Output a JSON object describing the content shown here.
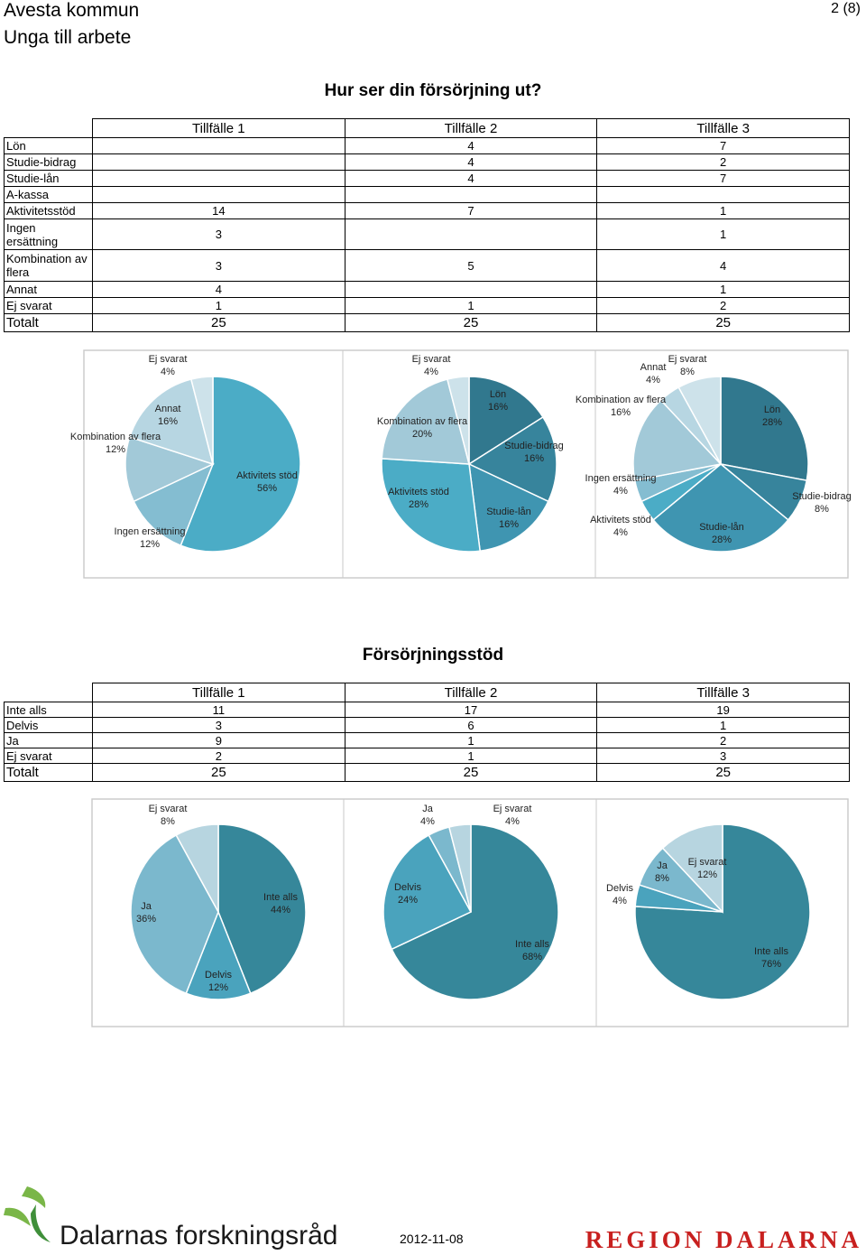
{
  "header": {
    "org": "Avesta kommun",
    "project": "Unga till arbete",
    "page": "2 (8)"
  },
  "section1": {
    "title": "Hur ser din försörjning ut?",
    "table": {
      "columns": [
        "Tillfälle 1",
        "Tillfälle 2",
        "Tillfälle 3"
      ],
      "rows": [
        {
          "label": "Lön",
          "values": [
            "",
            "4",
            "7"
          ]
        },
        {
          "label": "Studie-bidrag",
          "values": [
            "",
            "4",
            "2"
          ]
        },
        {
          "label": "Studie-lån",
          "values": [
            "",
            "4",
            "7"
          ]
        },
        {
          "label": "A-kassa",
          "values": [
            "",
            "",
            ""
          ]
        },
        {
          "label": "Aktivitetsstöd",
          "values": [
            "14",
            "7",
            "1"
          ]
        },
        {
          "label": "Ingen ersättning",
          "values": [
            "3",
            "",
            "1"
          ]
        },
        {
          "label": "Kombination av flera",
          "values": [
            "3",
            "5",
            "4"
          ]
        },
        {
          "label": "Annat",
          "values": [
            "4",
            "",
            "1"
          ]
        },
        {
          "label": "Ej svarat",
          "values": [
            "1",
            "1",
            "2"
          ]
        }
      ],
      "total": {
        "label": "Totalt",
        "values": [
          "25",
          "25",
          "25"
        ]
      }
    }
  },
  "section2": {
    "title": "Försörjningsstöd",
    "table": {
      "columns": [
        "Tillfälle 1",
        "Tillfälle 2",
        "Tillfälle 3"
      ],
      "rows": [
        {
          "label": "Inte alls",
          "values": [
            "11",
            "17",
            "19"
          ]
        },
        {
          "label": "Delvis",
          "values": [
            "3",
            "6",
            "1"
          ]
        },
        {
          "label": "Ja",
          "values": [
            "9",
            "1",
            "2"
          ]
        },
        {
          "label": "Ej svarat",
          "values": [
            "2",
            "1",
            "3"
          ]
        }
      ],
      "total": {
        "label": "Totalt",
        "values": [
          "25",
          "25",
          "25"
        ]
      }
    }
  },
  "chart_data": [
    {
      "type": "pie",
      "group": "Hur ser din försörjning ut?",
      "occasion": "Tillfälle 1",
      "slices": [
        {
          "label": "Aktivitets stöd",
          "value": 56,
          "color": "#4bacc6"
        },
        {
          "label": "Ingen ersättning",
          "value": 12,
          "color": "#84bdd1"
        },
        {
          "label": "Kombination av flera",
          "value": 12,
          "color": "#a2c9d8"
        },
        {
          "label": "Annat",
          "value": 16,
          "color": "#b7d6e2"
        },
        {
          "label": "Ej svarat",
          "value": 4,
          "color": "#cde2ea"
        }
      ]
    },
    {
      "type": "pie",
      "group": "Hur ser din försörjning ut?",
      "occasion": "Tillfälle 2",
      "slices": [
        {
          "label": "Lön",
          "value": 16,
          "color": "#31788e"
        },
        {
          "label": "Studie-bidrag",
          "value": 16,
          "color": "#37849c"
        },
        {
          "label": "Studie-lån",
          "value": 16,
          "color": "#3f95b1"
        },
        {
          "label": "Aktivitets stöd",
          "value": 28,
          "color": "#4bacc6"
        },
        {
          "label": "Kombination av flera",
          "value": 20,
          "color": "#a2c9d8"
        },
        {
          "label": "Ej svarat",
          "value": 4,
          "color": "#cde2ea"
        }
      ]
    },
    {
      "type": "pie",
      "group": "Hur ser din försörjning ut?",
      "occasion": "Tillfälle 3",
      "slices": [
        {
          "label": "Lön",
          "value": 28,
          "color": "#31788e"
        },
        {
          "label": "Studie-bidrag",
          "value": 8,
          "color": "#37849c"
        },
        {
          "label": "Studie-lån",
          "value": 28,
          "color": "#3f95b1"
        },
        {
          "label": "Aktivitets stöd",
          "value": 4,
          "color": "#4bacc6"
        },
        {
          "label": "Ingen ersättning",
          "value": 4,
          "color": "#84bdd1"
        },
        {
          "label": "Kombination av flera",
          "value": 16,
          "color": "#a2c9d8"
        },
        {
          "label": "Annat",
          "value": 4,
          "color": "#b7d6e2"
        },
        {
          "label": "Ej svarat",
          "value": 8,
          "color": "#cde2ea"
        }
      ]
    },
    {
      "type": "pie",
      "group": "Försörjningsstöd",
      "occasion": "Tillfälle 1",
      "slices": [
        {
          "label": "Inte alls",
          "value": 44,
          "color": "#36879a"
        },
        {
          "label": "Delvis",
          "value": 12,
          "color": "#4aa3bd"
        },
        {
          "label": "Ja",
          "value": 36,
          "color": "#7bb8cd"
        },
        {
          "label": "Ej svarat",
          "value": 8,
          "color": "#b7d5e0"
        }
      ]
    },
    {
      "type": "pie",
      "group": "Försörjningsstöd",
      "occasion": "Tillfälle 2",
      "slices": [
        {
          "label": "Inte alls",
          "value": 68,
          "color": "#36879a"
        },
        {
          "label": "Delvis",
          "value": 24,
          "color": "#4aa3bd"
        },
        {
          "label": "Ja",
          "value": 4,
          "color": "#7bb8cd"
        },
        {
          "label": "Ej svarat",
          "value": 4,
          "color": "#b7d5e0"
        }
      ]
    },
    {
      "type": "pie",
      "group": "Försörjningsstöd",
      "occasion": "Tillfälle 3",
      "slices": [
        {
          "label": "Inte alls",
          "value": 76,
          "color": "#36879a"
        },
        {
          "label": "Delvis",
          "value": 4,
          "color": "#4aa3bd"
        },
        {
          "label": "Ja",
          "value": 8,
          "color": "#7bb8cd"
        },
        {
          "label": "Ej svarat",
          "value": 12,
          "color": "#b7d5e0"
        }
      ]
    }
  ],
  "footer": {
    "logo_text": "Dalarnas forskningsråd",
    "date": "2012-11-08",
    "region_logo": "REGION DALARNA"
  }
}
